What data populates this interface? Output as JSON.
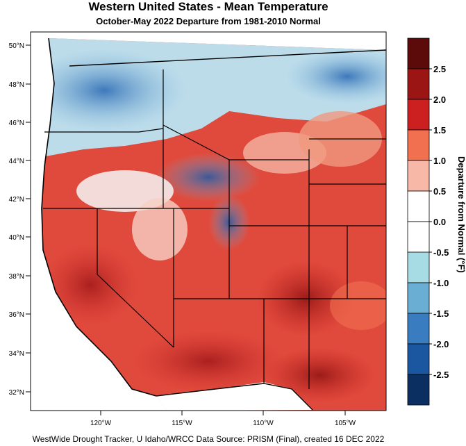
{
  "title": "Western United States - Mean Temperature",
  "subtitle": "October-May 2022  Departure from 1981-2010 Normal",
  "footer": "WestWide Drought Tracker, U Idaho/WRCC Data Source: PRISM (Final), created 16 DEC 2022",
  "latitude_labels": [
    "50°N",
    "48°N",
    "46°N",
    "44°N",
    "42°N",
    "40°N",
    "38°N",
    "36°N",
    "34°N",
    "32°N"
  ],
  "longitude_labels": [
    "120°W",
    "115°W",
    "110°W",
    "105°W"
  ],
  "colorbar": {
    "title": "Departure from Normal (°F)",
    "labels": [
      "2.5",
      "2.0",
      "1.5",
      "1.0",
      "0.5",
      "0.0",
      "-0.5",
      "-1.0",
      "-1.5",
      "-2.0",
      "-2.5"
    ],
    "colors": [
      "#5c0a0a",
      "#9b1515",
      "#cc2020",
      "#f07050",
      "#f8b8a8",
      "#ffffff",
      "#ffffff",
      "#a8dce4",
      "#6aaed4",
      "#3a7cc0",
      "#1b57a0",
      "#0c2f62"
    ]
  }
}
